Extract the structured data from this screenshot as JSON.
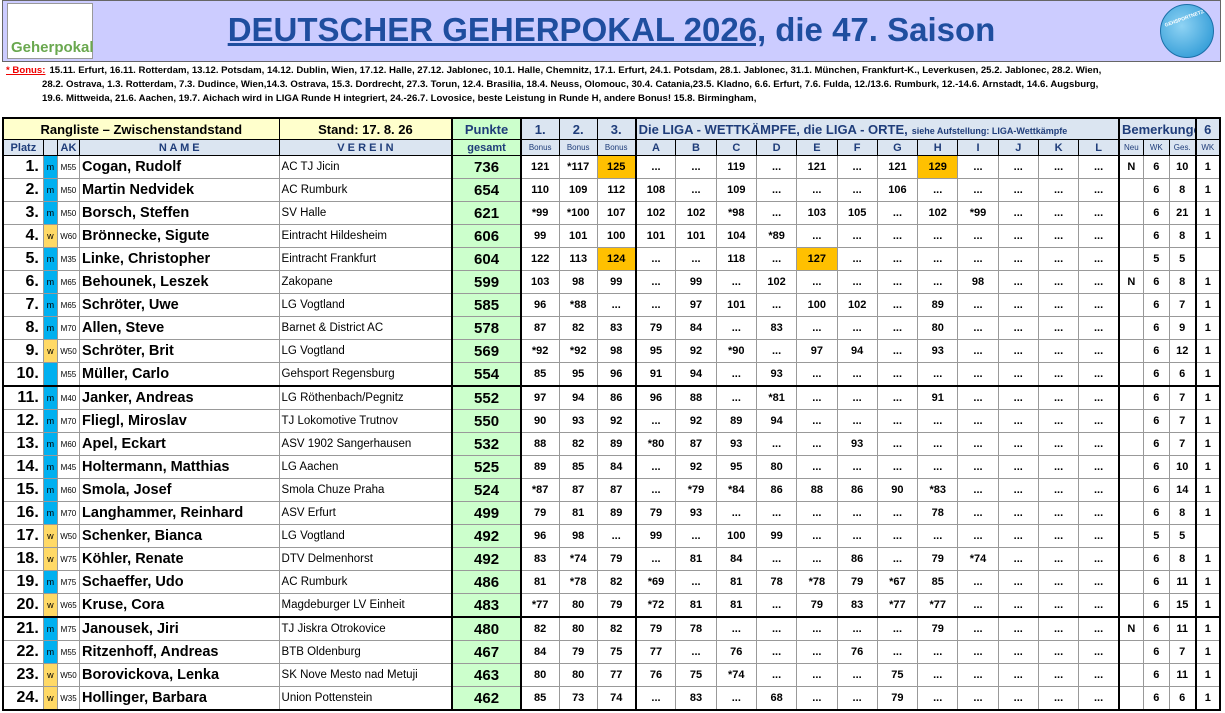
{
  "header": {
    "logo_text": "Geherpokal",
    "title_underlined": "DEUTSCHER GEHERPOKAL 2026,",
    "title_rest": "die 47. Saison",
    "badge": "GEHSPORTNETZWERK.COM"
  },
  "bonus": {
    "label": "* Bonus:",
    "lines": [
      "15.11. Erfurt, 16.11. Rotterdam, 13.12. Potsdam, 14.12. Dublin, Wien, 17.12. Halle, 27.12. Jablonec, 10.1. Halle, Chemnitz, 17.1. Erfurt, 24.1. Potsdam, 28.1. Jablonec, 31.1. München, Frankfurt-K., Leverkusen, 25.2. Jablonec, 28.2. Wien,",
      "28.2. Ostrava, 1.3. Rotterdam, 7.3. Dudince, Wien,14.3. Ostrava, 15.3. Dordrecht, 27.3. Torun, 12.4. Brasilia, 18.4. Neuss, Olomouc, 30.4. Catania,23.5. Kladno, 6.6. Erfurt, 7.6. Fulda, 12./13.6. Rumburk, 12.-14.6. Arnstadt, 14.6. Augsburg,",
      "19.6. Mittweida, 21.6. Aachen, 19.7. Aichach wird in LIGA Runde H integriert, 24.-26.7. Lovosice, beste Leistung in Runde H, andere Bonus! 15.8. Birmingham,"
    ]
  },
  "table": {
    "header1": {
      "rangliste": "Rangliste – Zwischenstandstand",
      "stand": "Stand: 17. 8. 26",
      "punkte": "Punkte",
      "b1": "1.",
      "b2": "2.",
      "b3": "3.",
      "liga_main": "Die LIGA - WETTKÄMPFE, die LIGA - ORTE,",
      "liga_sub": "siehe Aufstellung: LIGA-Wettkämpfe",
      "bemerkungen": "Bemerkungen",
      "six": "6"
    },
    "header2": [
      "Platz",
      "AK",
      "N A M E",
      "V E R E I N",
      "gesamt",
      "Bonus",
      "Bonus",
      "Bonus",
      "A",
      "B",
      "C",
      "D",
      "E",
      "F",
      "G",
      "H",
      "I",
      "J",
      "K",
      "L",
      "Neu",
      "WK",
      "Ges.",
      "WK"
    ],
    "rows": [
      [
        "1.",
        "m",
        "M55",
        "Cogan, Rudolf",
        "AC TJ Jicin",
        736,
        121,
        "*117",
        125,
        "...",
        "...",
        119,
        "...",
        121,
        "...",
        121,
        129,
        "...",
        "...",
        "...",
        "...",
        "N",
        6,
        10,
        1
      ],
      [
        "2.",
        "m",
        "M50",
        "Martin Nedvidek",
        "AC Rumburk",
        654,
        110,
        109,
        112,
        108,
        "...",
        109,
        "...",
        "...",
        "...",
        106,
        "...",
        "...",
        "...",
        "...",
        "...",
        null,
        6,
        8,
        1
      ],
      [
        "3.",
        "m",
        "M50",
        "Borsch, Steffen",
        "SV Halle",
        621,
        "*99",
        "*100",
        107,
        102,
        102,
        "*98",
        "...",
        103,
        105,
        "...",
        102,
        "*99",
        "...",
        "...",
        "...",
        null,
        6,
        21,
        1
      ],
      [
        "4.",
        "w",
        "W60",
        "Brönnecke, Sigute",
        "Eintracht Hildesheim",
        606,
        99,
        101,
        100,
        101,
        101,
        104,
        "*89",
        "...",
        "...",
        "...",
        "...",
        "...",
        "...",
        "...",
        "...",
        null,
        6,
        8,
        1
      ],
      [
        "5.",
        "m",
        "M35",
        "Linke, Christopher",
        "Eintracht Frankfurt",
        604,
        122,
        113,
        124,
        "...",
        "...",
        118,
        "...",
        127,
        "...",
        "...",
        "...",
        "...",
        "...",
        "...",
        "...",
        null,
        5,
        5,
        null
      ],
      [
        "6.",
        "m",
        "M65",
        "Behounek, Leszek",
        "Zakopane",
        599,
        103,
        98,
        99,
        "...",
        99,
        "...",
        102,
        "...",
        "...",
        "...",
        "...",
        98,
        "...",
        "...",
        "...",
        "N",
        6,
        8,
        1
      ],
      [
        "7.",
        "m",
        "M65",
        "Schröter, Uwe",
        "LG Vogtland",
        585,
        96,
        "*88",
        "...",
        "...",
        97,
        101,
        "...",
        100,
        102,
        "...",
        89,
        "...",
        "...",
        "...",
        "...",
        null,
        6,
        7,
        1
      ],
      [
        "8.",
        "m",
        "M70",
        "Allen, Steve",
        "Barnet & District AC",
        578,
        87,
        82,
        83,
        79,
        84,
        "...",
        83,
        "...",
        "...",
        "...",
        80,
        "...",
        "...",
        "...",
        "...",
        null,
        6,
        9,
        1
      ],
      [
        "9.",
        "w",
        "W50",
        "Schröter, Brit",
        "LG Vogtland",
        569,
        "*92",
        "*92",
        98,
        95,
        92,
        "*90",
        "...",
        97,
        94,
        "...",
        93,
        "...",
        "...",
        "...",
        "...",
        null,
        6,
        12,
        1
      ],
      [
        "10.",
        null,
        "M55",
        "Müller, Carlo",
        "Gehsport Regensburg",
        554,
        85,
        95,
        96,
        91,
        94,
        "...",
        93,
        "...",
        "...",
        "...",
        "...",
        "...",
        "...",
        "...",
        "...",
        null,
        6,
        6,
        1
      ],
      [
        "11.",
        "m",
        "M40",
        "Janker, Andreas",
        "LG Röthenbach/Pegnitz",
        552,
        97,
        94,
        86,
        96,
        88,
        "...",
        "*81",
        "...",
        "...",
        "...",
        91,
        "...",
        "...",
        "...",
        "...",
        null,
        6,
        7,
        1
      ],
      [
        "12.",
        "m",
        "M70",
        "Fliegl, Miroslav",
        "TJ Lokomotive Trutnov",
        550,
        90,
        93,
        92,
        "...",
        92,
        89,
        94,
        "...",
        "...",
        "...",
        "...",
        "...",
        "...",
        "...",
        "...",
        null,
        6,
        7,
        1
      ],
      [
        "13.",
        "m",
        "M60",
        "Apel, Eckart",
        "ASV 1902 Sangerhausen",
        532,
        88,
        82,
        89,
        "*80",
        87,
        93,
        "...",
        "...",
        93,
        "...",
        "...",
        "...",
        "...",
        "...",
        "...",
        null,
        6,
        7,
        1
      ],
      [
        "14.",
        "m",
        "M45",
        "Holtermann, Matthias",
        "LG  Aachen",
        525,
        89,
        85,
        84,
        "...",
        92,
        95,
        80,
        "...",
        "...",
        "...",
        "...",
        "...",
        "...",
        "...",
        "...",
        null,
        6,
        10,
        1
      ],
      [
        "15.",
        "m",
        "M60",
        "Smola, Josef",
        "Smola Chuze Praha",
        524,
        "*87",
        87,
        87,
        "...",
        "*79",
        "*84",
        86,
        88,
        86,
        90,
        "*83",
        "...",
        "...",
        "...",
        "...",
        null,
        6,
        14,
        1
      ],
      [
        "16.",
        "m",
        "M70",
        "Langhammer, Reinhard",
        "ASV Erfurt",
        499,
        79,
        81,
        89,
        79,
        93,
        "...",
        "...",
        "...",
        "...",
        "...",
        78,
        "...",
        "...",
        "...",
        "...",
        null,
        6,
        8,
        1
      ],
      [
        "17.",
        "w",
        "W50",
        "Schenker, Bianca",
        "LG Vogtland",
        492,
        96,
        98,
        "...",
        99,
        "...",
        100,
        99,
        "...",
        "...",
        "...",
        "...",
        "...",
        "...",
        "...",
        "...",
        null,
        5,
        5,
        null
      ],
      [
        "18.",
        "w",
        "W75",
        "Köhler, Renate",
        "DTV Delmenhorst",
        492,
        83,
        "*74",
        79,
        "...",
        81,
        84,
        "...",
        "...",
        86,
        "...",
        79,
        "*74",
        "...",
        "...",
        "...",
        null,
        6,
        8,
        1
      ],
      [
        "19.",
        "m",
        "M75",
        "Schaeffer, Udo",
        "AC Rumburk",
        486,
        81,
        "*78",
        82,
        "*69",
        "...",
        81,
        78,
        "*78",
        79,
        "*67",
        85,
        "...",
        "...",
        "...",
        "...",
        null,
        6,
        11,
        1
      ],
      [
        "20.",
        "w",
        "W65",
        "Kruse, Cora",
        "Magdeburger LV Einheit",
        483,
        "*77",
        80,
        79,
        "*72",
        81,
        81,
        "...",
        79,
        83,
        "*77",
        "*77",
        "...",
        "...",
        "...",
        "...",
        null,
        6,
        15,
        1
      ],
      [
        "21.",
        "m",
        "M75",
        "Janousek, Jiri",
        "TJ Jiskra Otrokovice",
        480,
        82,
        80,
        82,
        79,
        78,
        "...",
        "...",
        "...",
        "...",
        "...",
        79,
        "...",
        "...",
        "...",
        "...",
        "N",
        6,
        11,
        1
      ],
      [
        "22.",
        "m",
        "M55",
        "Ritzenhoff, Andreas",
        "BTB Oldenburg",
        467,
        84,
        79,
        75,
        77,
        "...",
        76,
        "...",
        "...",
        76,
        "...",
        "...",
        "...",
        "...",
        "...",
        "...",
        null,
        6,
        7,
        1
      ],
      [
        "23.",
        "w",
        "W50",
        "Borovickova, Lenka",
        "SK Nove Mesto nad Metuji",
        463,
        80,
        80,
        77,
        76,
        75,
        "*74",
        "...",
        "...",
        "...",
        75,
        "...",
        "...",
        "...",
        "...",
        "...",
        null,
        6,
        11,
        1
      ],
      [
        "24.",
        "w",
        "W35",
        "Hollinger, Barbara",
        "Union Pottenstein",
        462,
        85,
        73,
        74,
        "...",
        83,
        "...",
        68,
        "...",
        "...",
        79,
        "...",
        "...",
        "...",
        "...",
        "...",
        null,
        6,
        6,
        1
      ]
    ],
    "highlights": [
      [
        0,
        8
      ],
      [
        0,
        16
      ],
      [
        4,
        8
      ],
      [
        4,
        13
      ]
    ]
  }
}
